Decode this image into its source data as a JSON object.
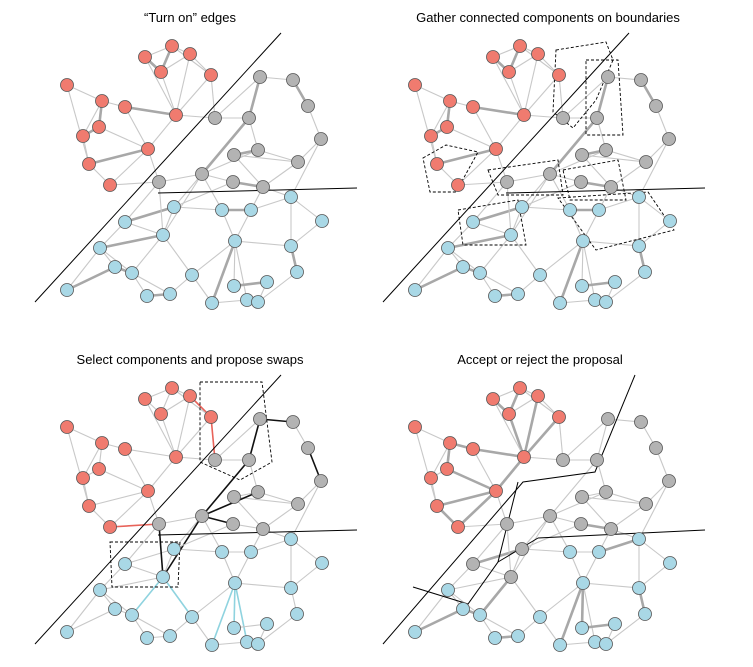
{
  "panels": [
    {
      "title": "“Turn on” edges"
    },
    {
      "title": "Gather connected components on boundaries"
    },
    {
      "title": "Select components and propose swaps"
    },
    {
      "title": "Accept or reject the proposal"
    }
  ],
  "colors": {
    "red_node": "#f07b6f",
    "gray_node": "#b3b3b3",
    "blue_node": "#a9d8e6",
    "node_stroke": "#555555",
    "edge_thin": "#c8c8c8",
    "edge_on": "#a8a8a8",
    "swap_red": "#e8635a",
    "swap_blue": "#8fd3df",
    "swap_black": "#111111",
    "boundary": "#000000"
  }
}
